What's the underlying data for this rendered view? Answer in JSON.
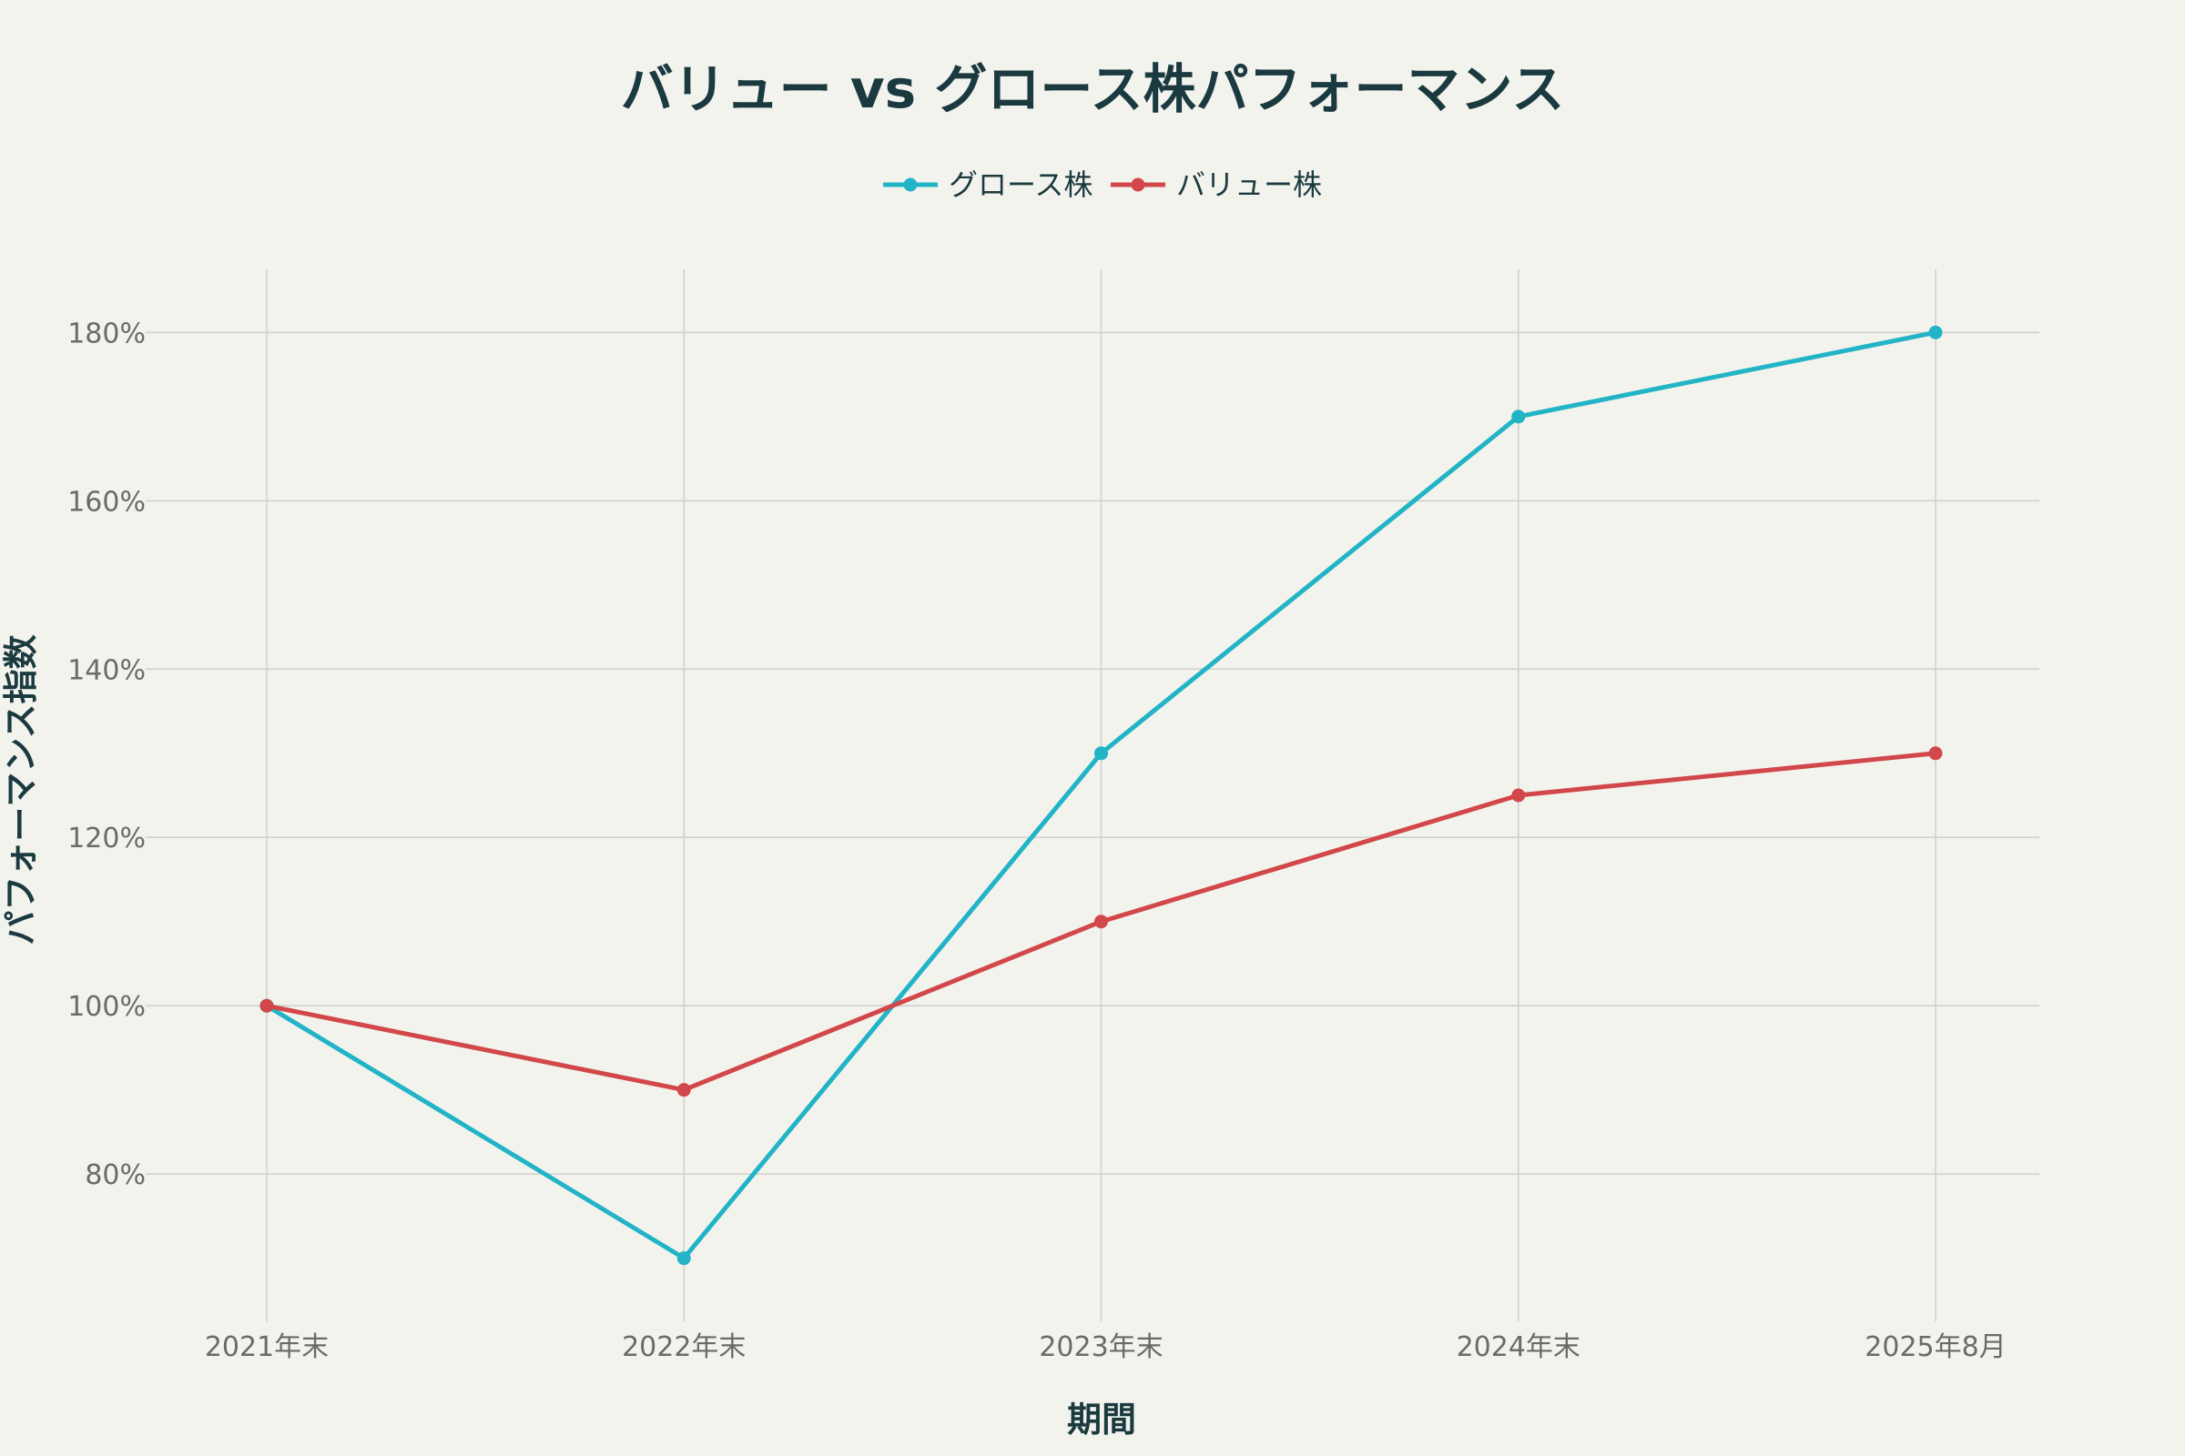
{
  "chart_data": {
    "type": "line",
    "title": "バリュー vs グロース株パフォーマンス",
    "xlabel": "期間",
    "ylabel": "パフォーマンス指数",
    "categories": [
      "2021年末",
      "2022年末",
      "2023年末",
      "2024年末",
      "2025年8月"
    ],
    "y_ticks": [
      80,
      100,
      120,
      140,
      160,
      180
    ],
    "y_tick_labels": [
      "80%",
      "100%",
      "120%",
      "140%",
      "160%",
      "180%"
    ],
    "ylim": [
      62.5,
      187.5
    ],
    "grid": true,
    "legend_position": "top-center",
    "series": [
      {
        "name": "グロース株",
        "color": "#22b4c6",
        "values": [
          100,
          70,
          130,
          170,
          180
        ]
      },
      {
        "name": "バリュー株",
        "color": "#d2474a",
        "values": [
          100,
          90,
          110,
          125,
          130
        ]
      }
    ]
  }
}
